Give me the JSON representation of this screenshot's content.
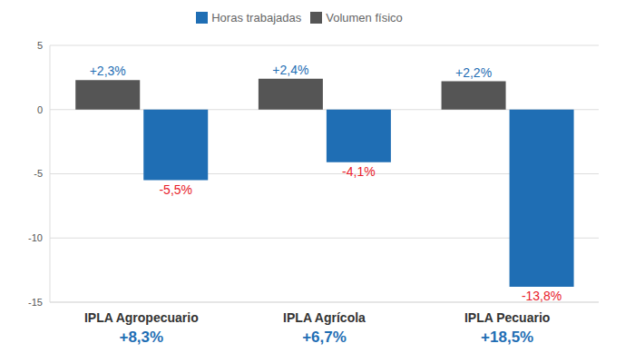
{
  "chart_data": {
    "type": "bar",
    "categories": [
      "IPLA Agropecuario",
      "IPLA Agrícola",
      "IPLA Pecuario"
    ],
    "series": [
      {
        "name": "Volumen físico",
        "color": "#555555",
        "values": [
          2.3,
          2.4,
          2.2
        ],
        "value_labels": [
          "+2,3%",
          "+2,4%",
          "+2,2%"
        ]
      },
      {
        "name": "Horas trabajadas",
        "color": "#1f6eb4",
        "values": [
          -5.5,
          -4.1,
          -13.8
        ],
        "value_labels": [
          "-5,5%",
          "-4,1%",
          "-13,8%"
        ]
      }
    ],
    "annotations": [
      "+8,3%",
      "+6,7%",
      "+18,5%"
    ],
    "ylim": [
      -15,
      5
    ],
    "yticks": [
      -15,
      -10,
      -5,
      0,
      5
    ],
    "grid": true,
    "legend": "top",
    "data_labels": true
  }
}
